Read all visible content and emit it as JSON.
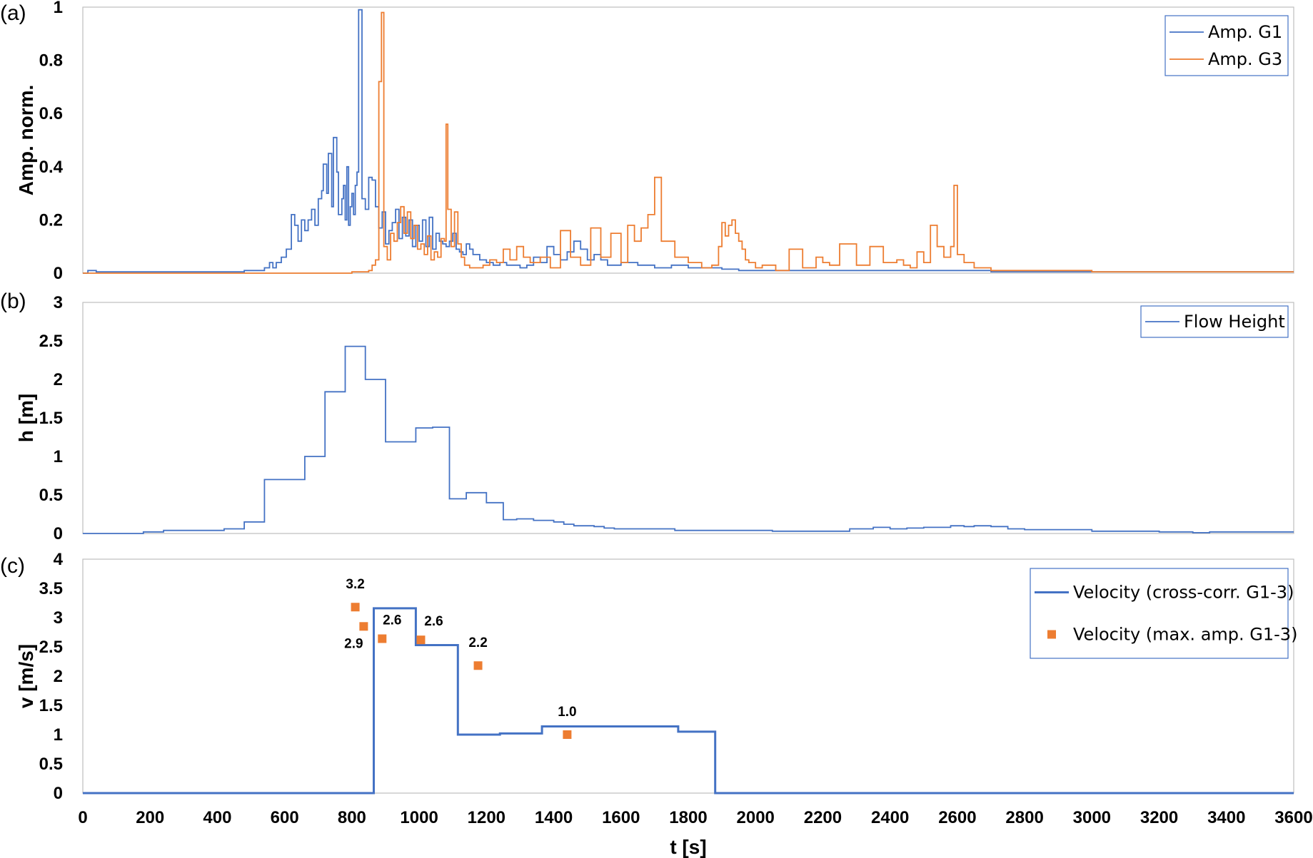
{
  "chart_data": [
    {
      "type": "line",
      "panel_label": "(a)",
      "ylabel": "Amp. norm.",
      "xlabel": "",
      "xlim": [
        0,
        3600
      ],
      "ylim": [
        0,
        1
      ],
      "yticks": [
        "0",
        "0.2",
        "0.4",
        "0.6",
        "0.8",
        "1"
      ],
      "step": true,
      "legend_position": "top-right",
      "series": [
        {
          "name": "Amp. G1",
          "color": "#4472c4",
          "x": [
            0,
            15,
            40,
            200,
            400,
            480,
            540,
            555,
            565,
            575,
            590,
            605,
            620,
            630,
            640,
            650,
            660,
            670,
            680,
            690,
            700,
            710,
            715,
            725,
            730,
            740,
            745,
            755,
            760,
            770,
            775,
            780,
            785,
            790,
            795,
            800,
            805,
            810,
            815,
            820,
            830,
            840,
            850,
            860,
            870,
            880,
            890,
            900,
            910,
            920,
            930,
            940,
            950,
            960,
            970,
            980,
            990,
            1000,
            1010,
            1020,
            1030,
            1040,
            1050,
            1060,
            1070,
            1080,
            1090,
            1100,
            1110,
            1120,
            1130,
            1140,
            1150,
            1160,
            1180,
            1200,
            1220,
            1240,
            1260,
            1280,
            1300,
            1320,
            1340,
            1360,
            1380,
            1400,
            1420,
            1440,
            1460,
            1480,
            1500,
            1520,
            1540,
            1560,
            1600,
            1650,
            1700,
            1750,
            1800,
            1850,
            1900,
            1950,
            2000,
            2050,
            2100,
            2300,
            2500,
            2700,
            3000,
            3600
          ],
          "y": [
            0.0,
            0.01,
            0.005,
            0.005,
            0.005,
            0.01,
            0.02,
            0.04,
            0.02,
            0.04,
            0.06,
            0.09,
            0.22,
            0.18,
            0.12,
            0.2,
            0.16,
            0.2,
            0.24,
            0.18,
            0.28,
            0.31,
            0.41,
            0.3,
            0.45,
            0.25,
            0.51,
            0.38,
            0.22,
            0.28,
            0.33,
            0.2,
            0.4,
            0.18,
            0.25,
            0.3,
            0.22,
            0.33,
            0.38,
            0.99,
            0.28,
            0.24,
            0.36,
            0.35,
            0.25,
            0.17,
            0.23,
            0.11,
            0.16,
            0.19,
            0.24,
            0.13,
            0.21,
            0.14,
            0.2,
            0.1,
            0.18,
            0.12,
            0.2,
            0.1,
            0.21,
            0.09,
            0.15,
            0.12,
            0.11,
            0.1,
            0.12,
            0.15,
            0.09,
            0.08,
            0.07,
            0.11,
            0.09,
            0.07,
            0.05,
            0.04,
            0.03,
            0.04,
            0.03,
            0.03,
            0.02,
            0.03,
            0.06,
            0.04,
            0.1,
            0.07,
            0.05,
            0.08,
            0.12,
            0.09,
            0.05,
            0.07,
            0.05,
            0.03,
            0.04,
            0.03,
            0.02,
            0.03,
            0.02,
            0.02,
            0.015,
            0.01,
            0.01,
            0.01,
            0.01,
            0.01,
            0.01,
            0.005,
            0.005,
            0.005
          ]
        },
        {
          "name": "Amp. G3",
          "color": "#ed7d31",
          "x": [
            0,
            800,
            850,
            860,
            870,
            880,
            888,
            895,
            905,
            915,
            925,
            935,
            945,
            955,
            965,
            975,
            985,
            995,
            1005,
            1015,
            1025,
            1035,
            1045,
            1055,
            1065,
            1075,
            1080,
            1085,
            1095,
            1105,
            1115,
            1125,
            1135,
            1150,
            1170,
            1190,
            1210,
            1230,
            1250,
            1270,
            1290,
            1310,
            1330,
            1360,
            1390,
            1420,
            1450,
            1480,
            1510,
            1540,
            1570,
            1600,
            1620,
            1640,
            1660,
            1680,
            1700,
            1720,
            1760,
            1800,
            1840,
            1870,
            1890,
            1900,
            1910,
            1920,
            1930,
            1940,
            1950,
            1960,
            1970,
            1980,
            2000,
            2020,
            2060,
            2100,
            2140,
            2180,
            2200,
            2220,
            2250,
            2300,
            2340,
            2380,
            2420,
            2440,
            2460,
            2480,
            2500,
            2520,
            2540,
            2560,
            2580,
            2590,
            2600,
            2620,
            2650,
            2700,
            3000,
            3600
          ],
          "y": [
            0.0,
            0.005,
            0.01,
            0.03,
            0.05,
            0.72,
            0.98,
            0.1,
            0.05,
            0.15,
            0.12,
            0.19,
            0.25,
            0.15,
            0.23,
            0.13,
            0.18,
            0.09,
            0.11,
            0.07,
            0.14,
            0.05,
            0.08,
            0.06,
            0.13,
            0.12,
            0.56,
            0.24,
            0.1,
            0.23,
            0.11,
            0.06,
            0.03,
            0.02,
            0.02,
            0.03,
            0.05,
            0.04,
            0.09,
            0.05,
            0.1,
            0.06,
            0.04,
            0.06,
            0.02,
            0.16,
            0.06,
            0.03,
            0.17,
            0.06,
            0.15,
            0.04,
            0.18,
            0.12,
            0.17,
            0.22,
            0.36,
            0.12,
            0.06,
            0.04,
            0.02,
            0.03,
            0.1,
            0.19,
            0.14,
            0.18,
            0.2,
            0.15,
            0.12,
            0.09,
            0.05,
            0.04,
            0.02,
            0.03,
            0.01,
            0.09,
            0.02,
            0.06,
            0.04,
            0.03,
            0.11,
            0.03,
            0.1,
            0.04,
            0.05,
            0.03,
            0.02,
            0.08,
            0.04,
            0.18,
            0.1,
            0.06,
            0.1,
            0.33,
            0.07,
            0.04,
            0.02,
            0.01,
            0.005,
            0.005
          ]
        }
      ]
    },
    {
      "type": "line",
      "panel_label": "(b)",
      "ylabel": "h [m]",
      "xlabel": "",
      "xlim": [
        0,
        3600
      ],
      "ylim": [
        0,
        3
      ],
      "yticks": [
        "0",
        "0.5",
        "1",
        "1.5",
        "2",
        "2.5",
        "3"
      ],
      "step": true,
      "legend_position": "top-right",
      "series": [
        {
          "name": "Flow Height",
          "color": "#4472c4",
          "x": [
            0,
            180,
            240,
            420,
            480,
            540,
            660,
            720,
            780,
            840,
            900,
            990,
            1040,
            1090,
            1140,
            1200,
            1250,
            1290,
            1340,
            1400,
            1430,
            1460,
            1520,
            1550,
            1580,
            1660,
            1760,
            1900,
            2050,
            2210,
            2280,
            2350,
            2400,
            2450,
            2500,
            2580,
            2620,
            2650,
            2700,
            2750,
            2800,
            3000,
            3200,
            3300,
            3350,
            3600
          ],
          "y": [
            0.0,
            0.02,
            0.04,
            0.06,
            0.15,
            0.7,
            1.0,
            1.84,
            2.43,
            2.0,
            1.19,
            1.37,
            1.38,
            0.45,
            0.53,
            0.4,
            0.18,
            0.19,
            0.17,
            0.15,
            0.12,
            0.1,
            0.09,
            0.07,
            0.06,
            0.06,
            0.04,
            0.04,
            0.03,
            0.03,
            0.06,
            0.08,
            0.06,
            0.07,
            0.08,
            0.1,
            0.09,
            0.1,
            0.09,
            0.06,
            0.05,
            0.03,
            0.02,
            0.01,
            0.02,
            0.02
          ]
        }
      ]
    },
    {
      "type": "line",
      "panel_label": "(c)",
      "ylabel": "v [m/s]",
      "xlabel": "t [s]",
      "xlim": [
        0,
        3600
      ],
      "ylim": [
        0,
        4
      ],
      "yticks": [
        "0",
        "0.5",
        "1",
        "1.5",
        "2",
        "2.5",
        "3",
        "3.5",
        "4"
      ],
      "xticks": [
        "0",
        "200",
        "400",
        "600",
        "800",
        "1000",
        "1200",
        "1400",
        "1600",
        "1800",
        "2000",
        "2200",
        "2400",
        "2600",
        "2800",
        "3000",
        "3200",
        "3400",
        "3600"
      ],
      "legend_position": "top-right",
      "series": [
        {
          "name": "Velocity (cross-corr. G1-3)",
          "color": "#4472c4",
          "step": true,
          "x": [
            0,
            865,
            990,
            1115,
            1240,
            1365,
            1770,
            1880,
            3600
          ],
          "y": [
            0,
            3.16,
            2.53,
            1.0,
            1.02,
            1.14,
            1.05,
            0,
            0
          ]
        },
        {
          "name": "Velocity (max. amp. G1-3)",
          "color": "#ed7d31",
          "marker": "square",
          "x": [
            810,
            835,
            890,
            1005,
            1175,
            1440
          ],
          "y": [
            3.18,
            2.85,
            2.64,
            2.62,
            2.18,
            1.0
          ],
          "labels": [
            "3.2",
            "2.9",
            "2.6",
            "2.6",
            "2.2",
            "1.0"
          ]
        }
      ]
    }
  ]
}
